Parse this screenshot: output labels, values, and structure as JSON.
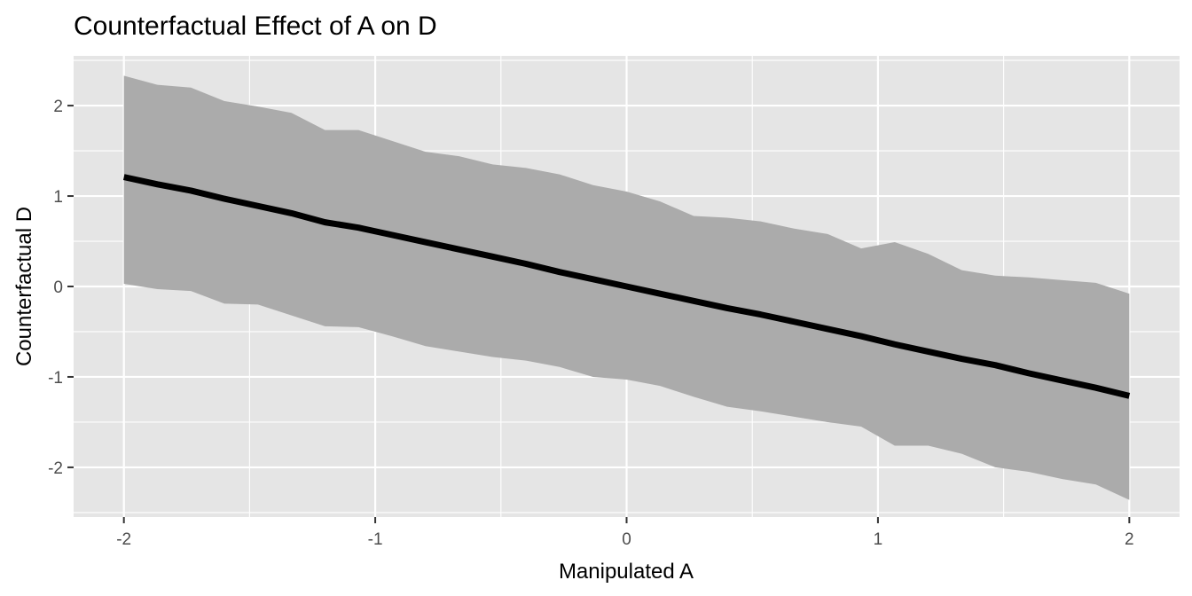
{
  "chart_data": {
    "type": "line",
    "title": "Counterfactual Effect of A on D",
    "xlabel": "Manipulated A",
    "ylabel": "Counterfactual D",
    "xlim": [
      -2.2,
      2.2
    ],
    "ylim": [
      -2.55,
      2.55
    ],
    "x_ticks": [
      -2,
      -1,
      0,
      1,
      2
    ],
    "x_tick_labels": [
      "-2",
      "-1",
      "0",
      "1",
      "2"
    ],
    "y_ticks": [
      -2,
      -1,
      0,
      1,
      2
    ],
    "y_tick_labels": [
      "-2",
      "-1",
      "0",
      "1",
      "2"
    ],
    "grid": true,
    "legend": "none",
    "colors": {
      "panel": "#e5e5e5",
      "grid": "#ffffff",
      "ribbon": "#ababab",
      "line": "#000000"
    },
    "x": [
      -2.0,
      -1.8667,
      -1.7333,
      -1.6,
      -1.4667,
      -1.3333,
      -1.2,
      -1.0667,
      -0.9333,
      -0.8,
      -0.6667,
      -0.5333,
      -0.4,
      -0.2667,
      -0.1333,
      0.0,
      0.1333,
      0.2667,
      0.4,
      0.5333,
      0.6667,
      0.8,
      0.9333,
      1.0667,
      1.2,
      1.3333,
      1.4667,
      1.6,
      1.7333,
      1.8667,
      2.0
    ],
    "series": [
      {
        "type": "line",
        "values": [
          1.21,
          1.13,
          1.06,
          0.97,
          0.89,
          0.81,
          0.71,
          0.65,
          0.57,
          0.49,
          0.41,
          0.33,
          0.25,
          0.16,
          0.08,
          0.0,
          -0.08,
          -0.16,
          -0.24,
          -0.31,
          -0.39,
          -0.47,
          -0.55,
          -0.64,
          -0.72,
          -0.8,
          -0.87,
          -0.96,
          -1.04,
          -1.12,
          -1.21
        ]
      },
      {
        "type": "ribbon",
        "lower": [
          0.03,
          -0.03,
          -0.05,
          -0.19,
          -0.2,
          -0.32,
          -0.44,
          -0.45,
          -0.55,
          -0.66,
          -0.72,
          -0.78,
          -0.82,
          -0.89,
          -1.0,
          -1.03,
          -1.1,
          -1.22,
          -1.33,
          -1.38,
          -1.44,
          -1.5,
          -1.55,
          -1.76,
          -1.76,
          -1.85,
          -2.0,
          -2.05,
          -2.13,
          -2.19,
          -2.36
        ],
        "upper": [
          2.33,
          2.23,
          2.2,
          2.05,
          1.99,
          1.92,
          1.73,
          1.73,
          1.61,
          1.49,
          1.44,
          1.35,
          1.31,
          1.24,
          1.12,
          1.05,
          0.94,
          0.78,
          0.76,
          0.72,
          0.64,
          0.58,
          0.42,
          0.49,
          0.36,
          0.18,
          0.12,
          0.1,
          0.07,
          0.04,
          -0.08
        ]
      }
    ]
  }
}
